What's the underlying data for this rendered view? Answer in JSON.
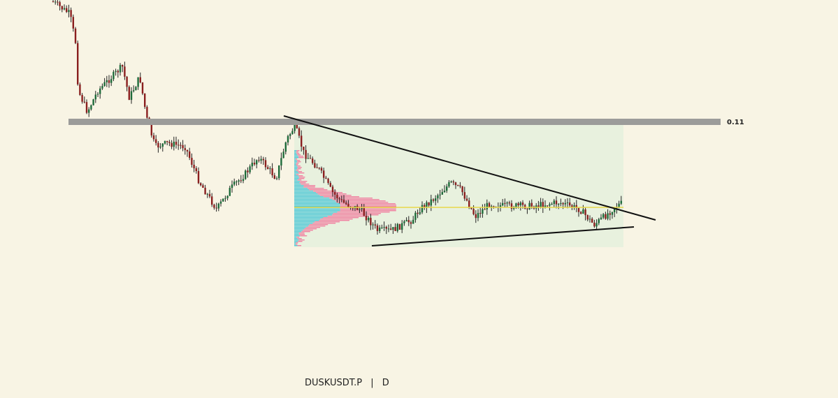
{
  "level_label": "0.11",
  "symbol": "DUSKUSDT.P",
  "separator": "|",
  "interval": "D"
}
